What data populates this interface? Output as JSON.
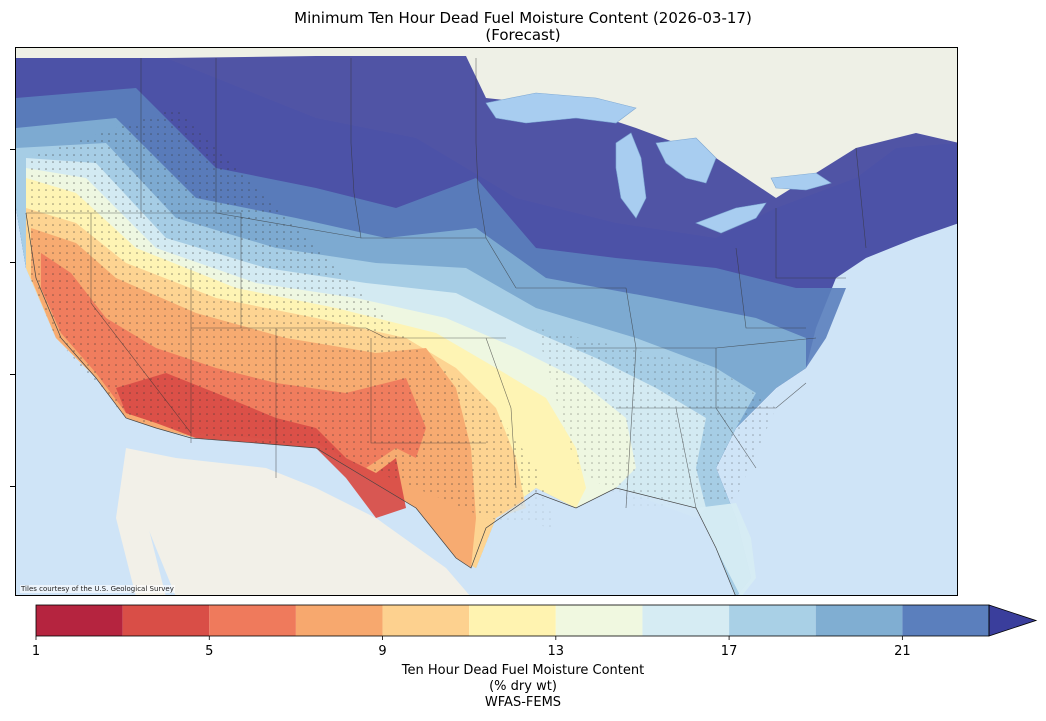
{
  "title_line1": "Minimum Ten Hour Dead Fuel Moisture Content (2026-03-17)",
  "title_line2": "(Forecast)",
  "attribution": "Tiles courtesy of the U.S. Geological Survey",
  "colorbar": {
    "label_line1": "Ten Hour Dead Fuel Moisture Content",
    "label_line2": "(% dry wt)",
    "label_line3": "WFAS-FEMS",
    "min": 1,
    "max": 23,
    "extend": "max",
    "bounds": [
      1,
      3,
      5,
      7,
      9,
      11,
      13,
      15,
      17,
      19,
      21,
      23
    ],
    "colors": [
      "#b5243f",
      "#d94e47",
      "#ef7a5c",
      "#f7a86e",
      "#fdd18f",
      "#fff3b0",
      "#f0f8e0",
      "#d6ecf3",
      "#a9d0e6",
      "#80aed2",
      "#5b7fbd",
      "#3a3e9c"
    ],
    "tick_labels": [
      "1",
      "5",
      "9",
      "13",
      "17",
      "21"
    ],
    "tick_values": [
      1,
      5,
      9,
      13,
      17,
      21
    ]
  },
  "map_colors": {
    "ocean": "#cfe4f7",
    "land": "#eef0e6",
    "lakes": "#a8cdf0",
    "borders": "#444444"
  }
}
